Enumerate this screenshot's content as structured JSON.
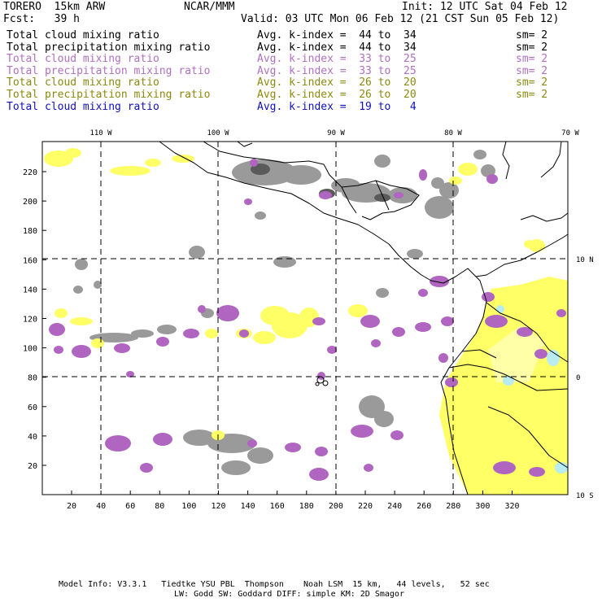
{
  "header": {
    "model": "TORERO  15km ARW",
    "center": "NCAR/MMM",
    "init": "Init: 12 UTC Sat 04 Feb 12",
    "fcst": "Fcst:   39 h",
    "valid": "Valid: 03 UTC Mon 06 Feb 12 (21 CST Sun 05 Feb 12)"
  },
  "legend": [
    {
      "field": "Total cloud mixing ratio",
      "idx": "Avg. k-index =  44 to  34",
      "sm": "sm= 2",
      "color": "#000000"
    },
    {
      "field": "Total precipitation mixing ratio",
      "idx": "Avg. k-index =  44 to  34",
      "sm": "sm= 2",
      "color": "#000000"
    },
    {
      "field": "Total cloud mixing ratio",
      "idx": "Avg. k-index =  33 to  25",
      "sm": "sm= 2",
      "color": "#b070c0"
    },
    {
      "field": "Total precipitation mixing ratio",
      "idx": "Avg. k-index =  33 to  25",
      "sm": "sm= 2",
      "color": "#b070c0"
    },
    {
      "field": "Total cloud mixing ratio",
      "idx": "Avg. k-index =  26 to  20",
      "sm": "sm= 2",
      "color": "#8a8a10"
    },
    {
      "field": "Total precipitation mixing ratio",
      "idx": "Avg. k-index =  26 to  20",
      "sm": "sm= 2",
      "color": "#8a8a10"
    },
    {
      "field": "Total cloud mixing ratio",
      "idx": "Avg. k-index =  19 to   4",
      "sm": "",
      "color": "#1010c0"
    }
  ],
  "map": {
    "lon_labels": [
      "110 W",
      "100 W",
      "90 W",
      "80 W",
      "70 W"
    ],
    "lat_labels": [
      "10 N",
      "0",
      "10 S"
    ],
    "y_ticks": [
      "20",
      "40",
      "60",
      "80",
      "100",
      "120",
      "140",
      "160",
      "180",
      "200",
      "220"
    ],
    "x_ticks": [
      "20",
      "40",
      "60",
      "80",
      "100",
      "120",
      "140",
      "160",
      "180",
      "200",
      "220",
      "240",
      "260",
      "280",
      "300",
      "320"
    ],
    "colors": {
      "gray": "#9a9a9a",
      "dark_gray": "#5a5a5a",
      "purple": "#b066c0",
      "yellow": "#ffff66",
      "light_yellow": "#ffffa8",
      "cyan": "#b8ecf0"
    }
  },
  "footer": {
    "line1": "Model Info: V3.3.1   Tiedtke YSU PBL  Thompson    Noah LSM  15 km,   44 levels,   52 sec",
    "line2": "LW: Godd SW: Goddard DIFF: simple KM: 2D Smagor"
  }
}
